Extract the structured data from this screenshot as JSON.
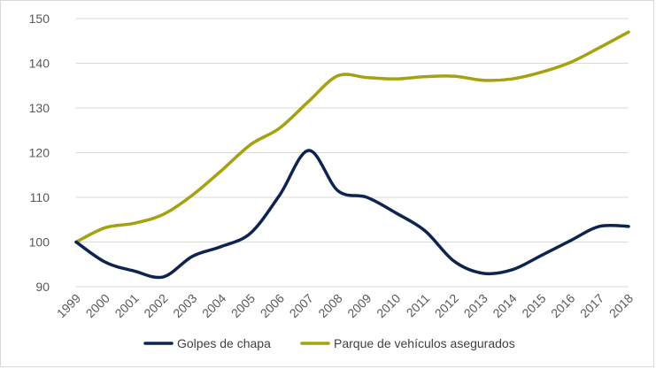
{
  "chart_data": {
    "type": "line",
    "title": "",
    "xlabel": "",
    "ylabel": "",
    "x": [
      "1999",
      "2000",
      "2001",
      "2002",
      "2003",
      "2004",
      "2005",
      "2006",
      "2007",
      "2008",
      "2009",
      "2010",
      "2011",
      "2012",
      "2013",
      "2014",
      "2015",
      "2016",
      "2017",
      "2018"
    ],
    "ylim": [
      90,
      150
    ],
    "yticks": [
      90,
      100,
      110,
      120,
      130,
      140,
      150
    ],
    "grid": "horizontal",
    "legend_position": "bottom",
    "series": [
      {
        "name": "Golpes de chapa",
        "color": "#0d2451",
        "values": [
          100,
          95.5,
          93.5,
          92.2,
          96.8,
          99,
          102,
          110.5,
          120.5,
          111.5,
          110,
          106.5,
          102.5,
          95.7,
          93,
          93.8,
          97,
          100.3,
          103.5,
          103.5
        ]
      },
      {
        "name": "Parque de vehículos asegurados",
        "color": "#a4a20e",
        "values": [
          100,
          103.2,
          104.2,
          106.2,
          110.5,
          116,
          121.8,
          125.5,
          131.5,
          137.2,
          136.8,
          136.5,
          137,
          137.1,
          136.2,
          136.5,
          138,
          140.2,
          143.5,
          147
        ]
      }
    ]
  }
}
